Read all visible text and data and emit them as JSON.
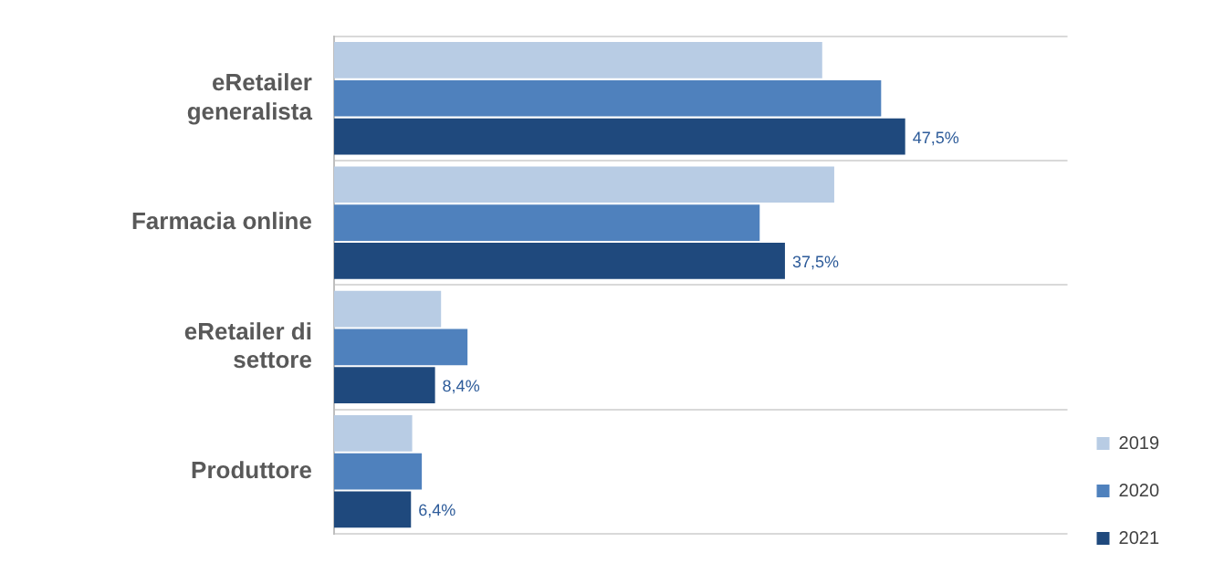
{
  "chart_data": {
    "type": "bar",
    "orientation": "horizontal",
    "categories": [
      "eRetailer generalista",
      "Farmacia online",
      "eRetailer di settore",
      "Produttore"
    ],
    "series": [
      {
        "name": "2019",
        "color": "#b8cce4",
        "values": [
          40.6,
          41.6,
          8.9,
          6.5
        ]
      },
      {
        "name": "2020",
        "color": "#4f81bd",
        "values": [
          45.5,
          35.4,
          11.1,
          7.3
        ]
      },
      {
        "name": "2021",
        "color": "#1f497d",
        "values": [
          47.5,
          37.5,
          8.4,
          6.4
        ],
        "value_labels": [
          "47,5%",
          "37,5%",
          "8,4%",
          "6,4%"
        ]
      }
    ],
    "xlim": [
      0,
      61
    ],
    "tick_labels": "y",
    "grid": "y",
    "legend": "bottom right"
  }
}
